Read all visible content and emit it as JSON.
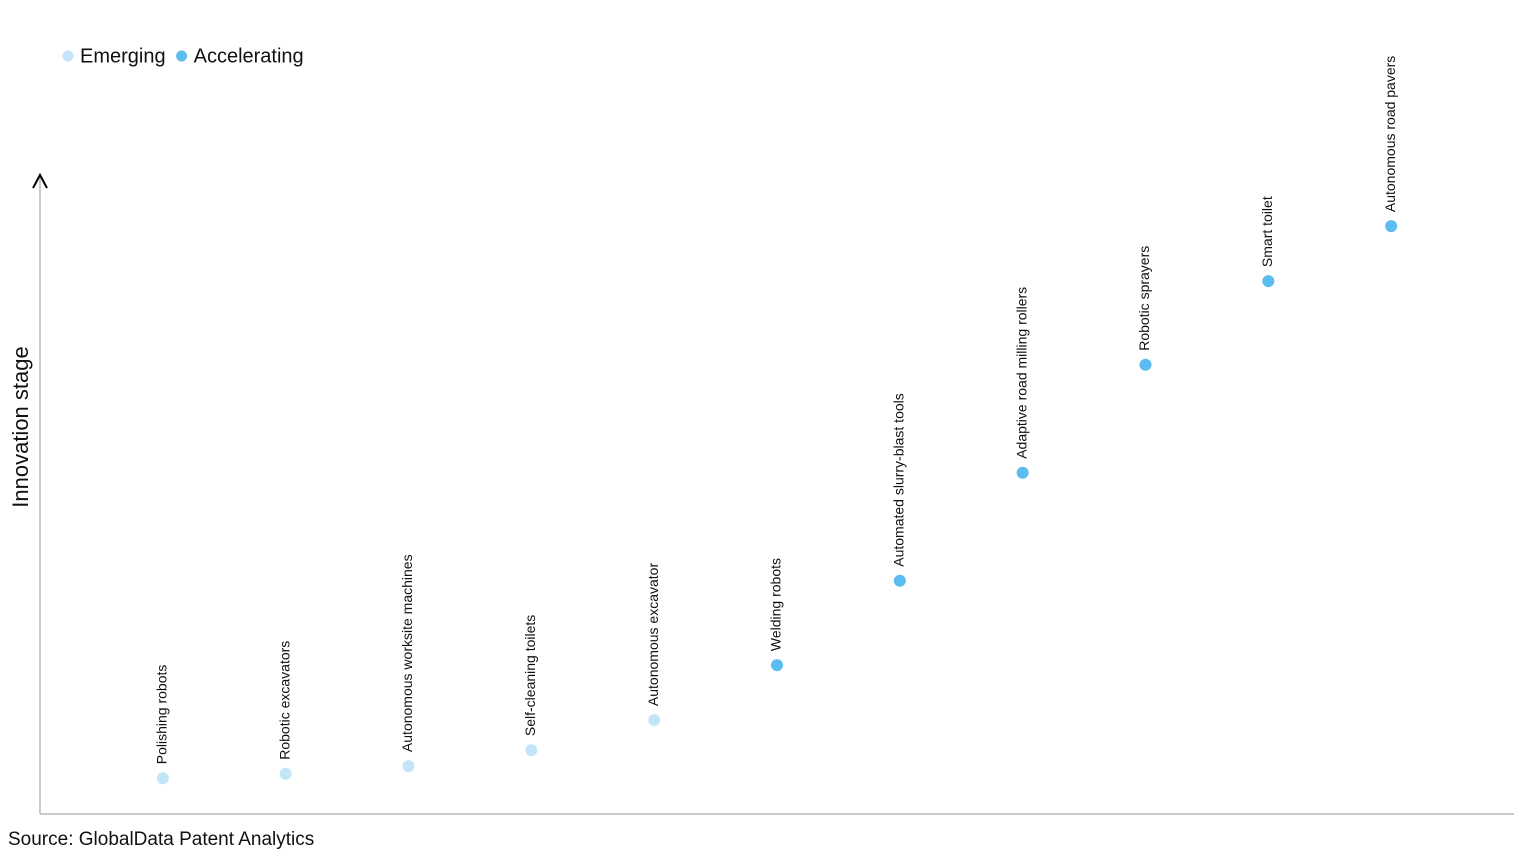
{
  "chart_data": {
    "type": "scatter",
    "y_axis_label": "Innovation stage",
    "source": "Source: GlobalData Patent Analytics",
    "categories": [
      "Polishing robots",
      "Robotic excavators",
      "Autonomous worksite machines",
      "Self-cleaning toilets",
      "Autonomous excavator",
      "Welding robots",
      "Automated slurry-blast tools",
      "Adaptive road milling rollers",
      "Robotic sprayers",
      "Smart toilet",
      "Autonomous road pavers"
    ],
    "series": [
      {
        "name": "Emerging",
        "color": "#c2e6f8",
        "values": [
          5.6,
          6.3,
          7.5,
          10,
          14.7,
          null,
          null,
          null,
          null,
          null,
          null
        ]
      },
      {
        "name": "Accelerating",
        "color": "#5bbcf0",
        "values": [
          null,
          null,
          null,
          null,
          null,
          23.3,
          36.5,
          53.4,
          70.3,
          83.4,
          92
        ]
      }
    ],
    "ylim": [
      0,
      100
    ]
  }
}
